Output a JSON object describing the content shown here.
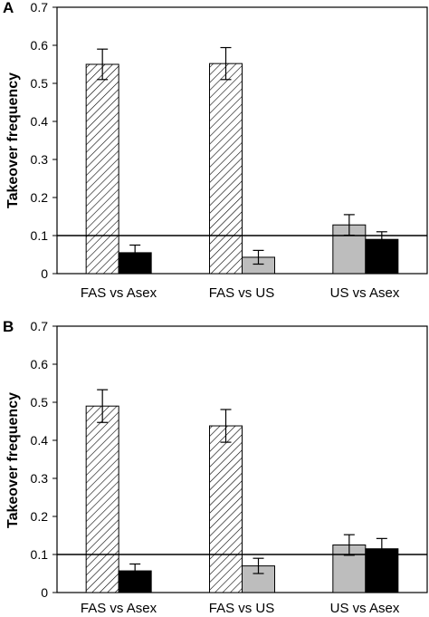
{
  "chart_data": [
    {
      "type": "bar",
      "panel_label": "A",
      "ylabel": "Takeover frequency",
      "ylim": [
        0,
        0.7
      ],
      "yticks": [
        "0",
        "0.1",
        "0.2",
        "0.3",
        "0.4",
        "0.5",
        "0.6",
        "0.7"
      ],
      "reference_line": 0.1,
      "grid": false,
      "groups": [
        {
          "label": "FAS vs Asex",
          "bars": [
            {
              "fill": "hatched",
              "value": 0.55,
              "err": 0.04
            },
            {
              "fill": "#000000",
              "value": 0.055,
              "err": 0.02
            }
          ]
        },
        {
          "label": "FAS vs US",
          "bars": [
            {
              "fill": "hatched",
              "value": 0.552,
              "err": 0.042
            },
            {
              "fill": "#bdbdbd",
              "value": 0.043,
              "err": 0.018
            }
          ]
        },
        {
          "label": "US vs Asex",
          "bars": [
            {
              "fill": "#bdbdbd",
              "value": 0.128,
              "err": 0.027
            },
            {
              "fill": "#000000",
              "value": 0.09,
              "err": 0.02
            }
          ]
        }
      ]
    },
    {
      "type": "bar",
      "panel_label": "B",
      "ylabel": "Takeover frequency",
      "ylim": [
        0,
        0.7
      ],
      "yticks": [
        "0",
        "0.1",
        "0.2",
        "0.3",
        "0.4",
        "0.5",
        "0.6",
        "0.7"
      ],
      "reference_line": 0.1,
      "grid": false,
      "groups": [
        {
          "label": "FAS vs Asex",
          "bars": [
            {
              "fill": "hatched",
              "value": 0.49,
              "err": 0.043
            },
            {
              "fill": "#000000",
              "value": 0.057,
              "err": 0.018
            }
          ]
        },
        {
          "label": "FAS vs US",
          "bars": [
            {
              "fill": "hatched",
              "value": 0.438,
              "err": 0.043
            },
            {
              "fill": "#bdbdbd",
              "value": 0.07,
              "err": 0.02
            }
          ]
        },
        {
          "label": "US vs Asex",
          "bars": [
            {
              "fill": "#bdbdbd",
              "value": 0.125,
              "err": 0.027
            },
            {
              "fill": "#000000",
              "value": 0.115,
              "err": 0.027
            }
          ]
        }
      ]
    }
  ]
}
